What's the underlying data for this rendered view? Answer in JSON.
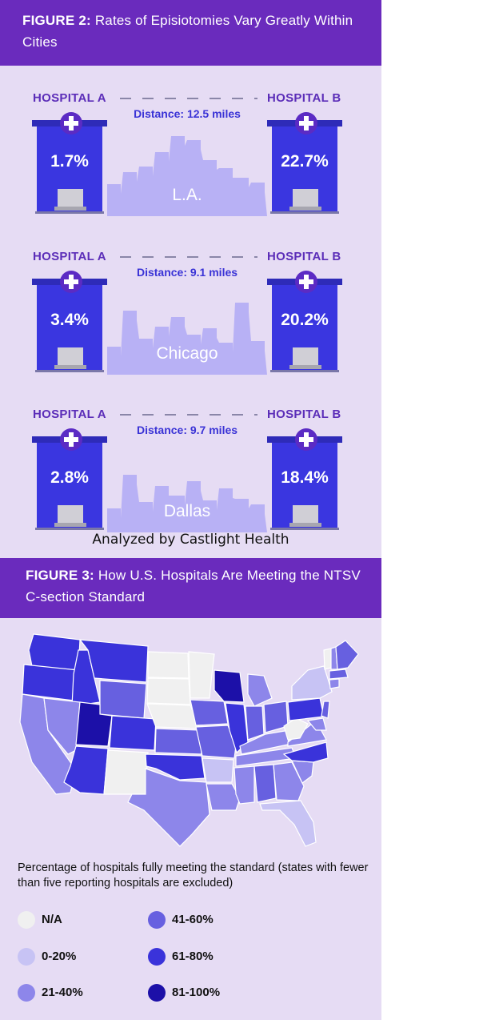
{
  "figure2": {
    "label": "FIGURE 2:",
    "title": "Rates of Episiotomies Vary Greatly Within Cities",
    "credit": "Analyzed by Castlight Health"
  },
  "figure3": {
    "label": "FIGURE 3:",
    "title": "How U.S. Hospitals Are Meeting the NTSV C-section Standard",
    "legend_title": "Percentage of hospitals fully meeting the standard (states with fewer than five reporting hospitals are excluded)"
  },
  "colors": {
    "header_bg": "#6a2bbd",
    "panel_bg": "#e6dcf4",
    "building": "#3a36e0",
    "skyline": "#b8b1f5",
    "na": "#f0f0f0",
    "b0_20": "#c7c3f4",
    "b21_40": "#8d86ea",
    "b41_60": "#6760e0",
    "b61_80": "#3a33da",
    "b81_100": "#1c10a8"
  },
  "chart_data": [
    {
      "type": "bar",
      "title": "Rates of Episiotomies Vary Greatly Within Cities",
      "categories": [
        "L.A.",
        "Chicago",
        "Dallas"
      ],
      "series": [
        {
          "name": "HOSPITAL A",
          "values": [
            1.7,
            3.4,
            2.8
          ]
        },
        {
          "name": "HOSPITAL B",
          "values": [
            22.7,
            20.2,
            18.4
          ]
        }
      ],
      "distances": [
        "Distance: 12.5 miles",
        "Distance: 9.1 miles",
        "Distance: 9.7 miles"
      ],
      "value_labels": {
        "a": [
          "1.7%",
          "3.4%",
          "2.8%"
        ],
        "b": [
          "22.7%",
          "20.2%",
          "18.4%"
        ]
      },
      "unit": "%"
    },
    {
      "type": "heatmap",
      "title": "How U.S. Hospitals Are Meeting the NTSV C-section Standard",
      "legend": [
        {
          "label": "N/A",
          "color": "#f0f0f0"
        },
        {
          "label": "0-20%",
          "color": "#c7c3f4"
        },
        {
          "label": "21-40%",
          "color": "#8d86ea"
        },
        {
          "label": "41-60%",
          "color": "#6760e0"
        },
        {
          "label": "61-80%",
          "color": "#3a33da"
        },
        {
          "label": "81-100%",
          "color": "#1c10a8"
        }
      ],
      "legend_placement": "bottom"
    }
  ]
}
